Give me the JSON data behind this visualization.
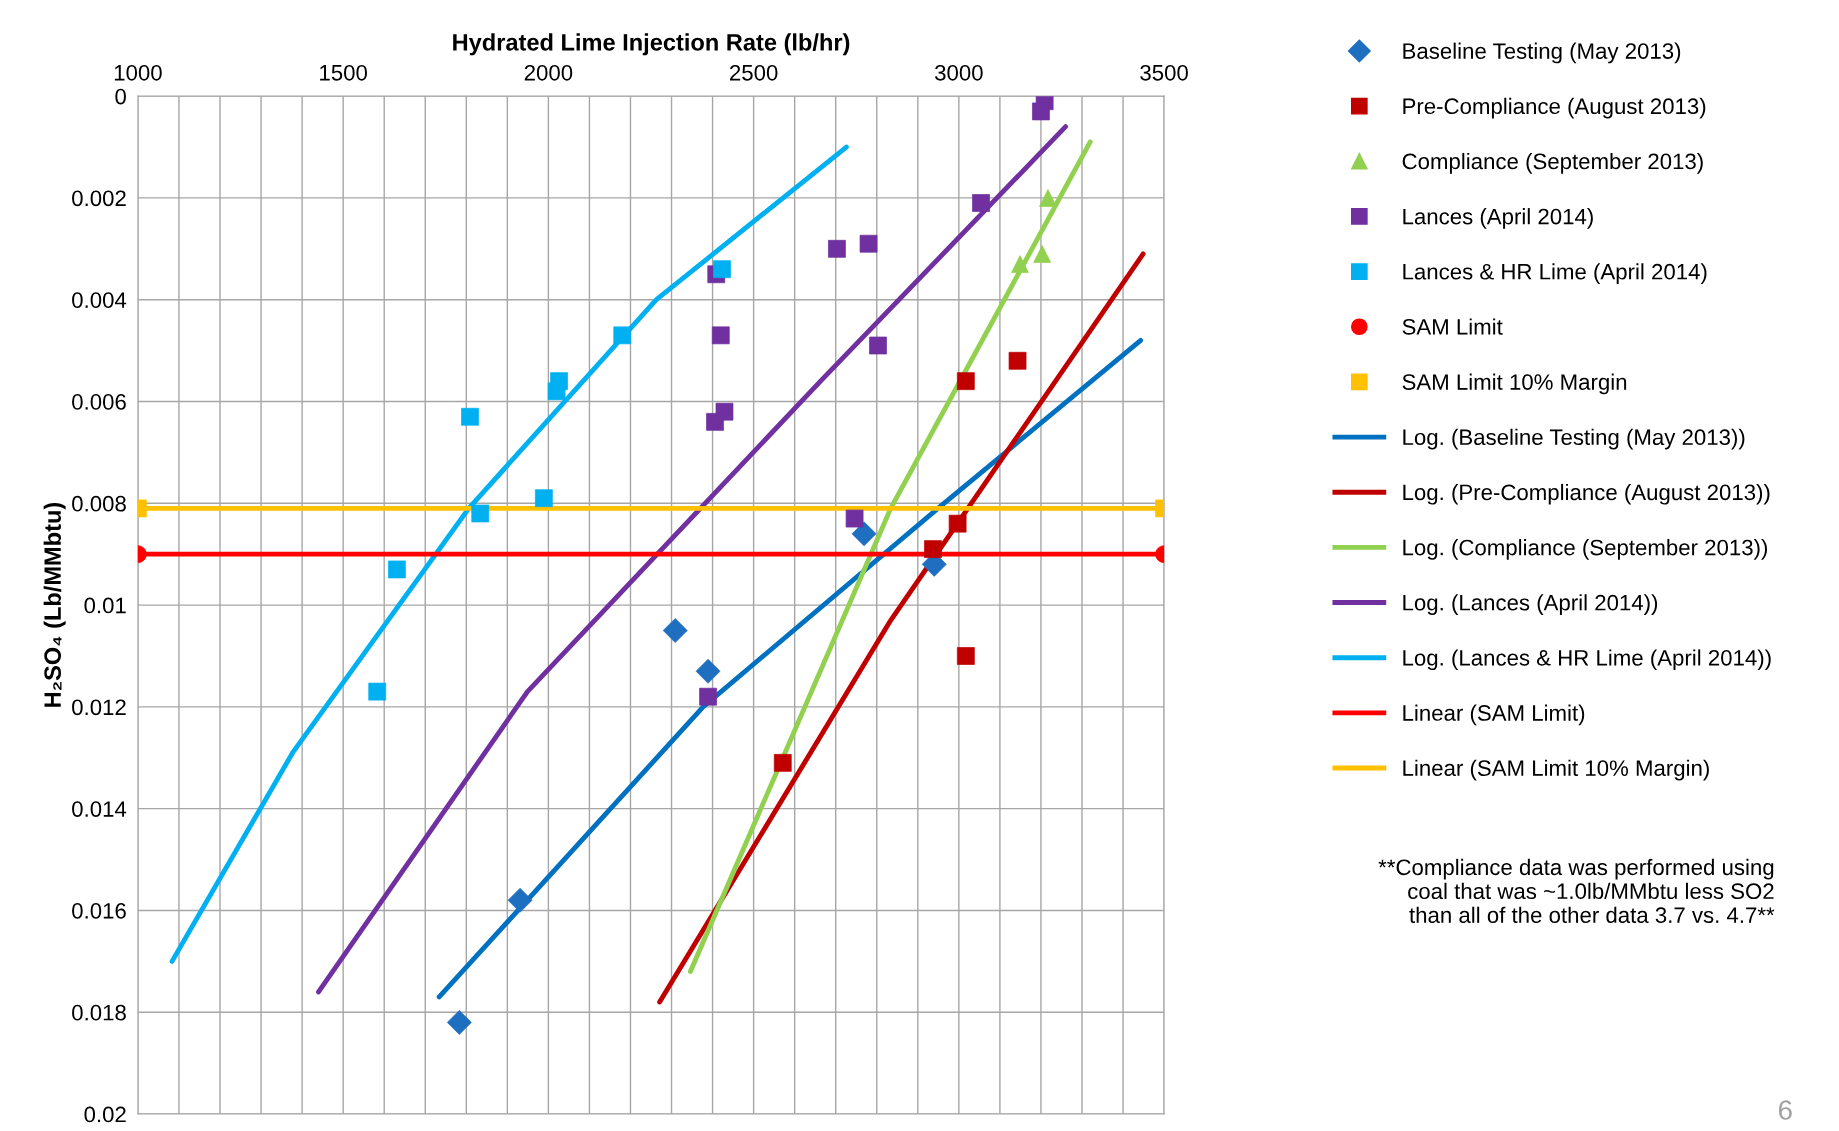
{
  "chart_data": {
    "type": "scatter",
    "xlabel": "Hydrated Lime Injection Rate (lb/hr)",
    "ylabel": "H₂SO₄ (Lb/MMbtu)",
    "xlim": [
      1000,
      3500
    ],
    "xticks": [
      1000,
      {
        "value": 1100,
        "label": null
      },
      {
        "value": 1200,
        "label": null
      },
      {
        "value": 1300,
        "label": null
      },
      {
        "value": 1400,
        "label": null
      },
      1500,
      {
        "value": 1600,
        "label": null
      },
      {
        "value": 1700,
        "label": null
      },
      {
        "value": 1800,
        "label": null
      },
      {
        "value": 1900,
        "label": null
      },
      2000,
      {
        "value": 2100,
        "label": null
      },
      {
        "value": 2200,
        "label": null
      },
      {
        "value": 2300,
        "label": null
      },
      {
        "value": 2400,
        "label": null
      },
      2500,
      {
        "value": 2600,
        "label": null
      },
      {
        "value": 2700,
        "label": null
      },
      {
        "value": 2800,
        "label": null
      },
      {
        "value": 2900,
        "label": null
      },
      3000,
      {
        "value": 3100,
        "label": null
      },
      {
        "value": 3200,
        "label": null
      },
      {
        "value": 3300,
        "label": null
      },
      {
        "value": 3400,
        "label": null
      },
      3500
    ],
    "ylim": [
      0.02,
      0
    ],
    "yticks": [
      0,
      0.002,
      0.004,
      0.006,
      0.008,
      0.01,
      0.012,
      0.014,
      0.016,
      0.018,
      0.02
    ],
    "grid": true,
    "legend": "right",
    "series": [
      {
        "name": "Baseline Testing (May 2013)",
        "marker": "diamond",
        "color": "#1f6fc0",
        "x": [
          1783,
          1931,
          2309,
          2389,
          2769,
          2940
        ],
        "values": [
          0.0182,
          0.0158,
          0.0105,
          0.0113,
          0.0086,
          0.0092
        ]
      },
      {
        "name": "Pre-Compliance (August 2013)",
        "marker": "square",
        "color": "#c00000",
        "x": [
          2571,
          2937,
          2997,
          3017,
          3017,
          3143
        ],
        "values": [
          0.0131,
          0.0089,
          0.0084,
          0.011,
          0.0056,
          0.0052
        ]
      },
      {
        "name": "Compliance (September 2013)",
        "marker": "triangle",
        "color": "#92d050",
        "x": [
          3149,
          3203,
          3217
        ],
        "values": [
          0.0033,
          0.0031,
          0.002
        ]
      },
      {
        "name": "Lances (April 2014)",
        "marker": "square",
        "color": "#7030a0",
        "x": [
          2409,
          2420,
          2429,
          2406,
          2703,
          2780,
          2803,
          3054,
          3209,
          3200,
          2746,
          2389
        ],
        "values": [
          0.0035,
          0.0047,
          0.0062,
          0.0064,
          0.003,
          0.0029,
          0.0049,
          0.0021,
          0.0001,
          0.0003,
          0.0083,
          0.0118
        ]
      },
      {
        "name": "Lances & HR Lime (April 2014)",
        "marker": "square",
        "color": "#00b0f0",
        "x": [
          1809,
          1583,
          1631,
          1834,
          1989,
          2026,
          2020,
          2180,
          2423
        ],
        "values": [
          0.0063,
          0.0117,
          0.0093,
          0.0082,
          0.0079,
          0.0056,
          0.0058,
          0.0047,
          0.0034
        ]
      },
      {
        "name": "SAM Limit",
        "marker": "circle",
        "color": "#ff0000",
        "x": [
          1000,
          3500
        ],
        "values": [
          0.009,
          0.009
        ]
      },
      {
        "name": "SAM Limit 10% Margin",
        "marker": "square",
        "color": "#ffc000",
        "x": [
          1000,
          3500
        ],
        "values": [
          0.0081,
          0.0081
        ]
      },
      {
        "name": "Log. (Baseline Testing (May 2013))",
        "type": "line",
        "color": "#0070c0",
        "x": [
          1734,
          2377,
          2949,
          3443
        ],
        "values": [
          0.0177,
          0.012,
          0.0081,
          0.0048
        ]
      },
      {
        "name": "Log. (Pre-Compliance (August 2013))",
        "type": "line",
        "color": "#c00000",
        "x": [
          2271,
          2834,
          3449
        ],
        "values": [
          0.0178,
          0.0103,
          0.0031
        ]
      },
      {
        "name": "Log. (Compliance (September 2013))",
        "type": "line",
        "color": "#92d050",
        "x": [
          2346,
          2834,
          3320
        ],
        "values": [
          0.0172,
          0.0081,
          0.0009
        ]
      },
      {
        "name": "Log. (Lances (April 2014))",
        "type": "line",
        "color": "#7030a0",
        "x": [
          1440,
          1949,
          2663,
          3260
        ],
        "values": [
          0.0176,
          0.0117,
          0.0056,
          0.0006
        ]
      },
      {
        "name": "Log. (Lances & HR Lime (April 2014))",
        "type": "line",
        "color": "#00b0f0",
        "x": [
          1083,
          1377,
          1806,
          2263,
          2726
        ],
        "values": [
          0.017,
          0.0129,
          0.0081,
          0.004,
          0.001
        ]
      },
      {
        "name": "Linear (SAM Limit)",
        "type": "line",
        "color": "#ff0000",
        "x": [
          1000,
          3500
        ],
        "values": [
          0.009,
          0.009
        ]
      },
      {
        "name": "Linear (SAM Limit 10% Margin)",
        "type": "line",
        "color": "#ffc000",
        "x": [
          1000,
          3500
        ],
        "values": [
          0.0081,
          0.0081
        ]
      }
    ],
    "annotations": [
      "**Compliance data was performed using\ncoal that was ~1.0lb/MMbtu less SO2\nthan all of the other data 3.7 vs. 4.7**",
      "6"
    ]
  }
}
